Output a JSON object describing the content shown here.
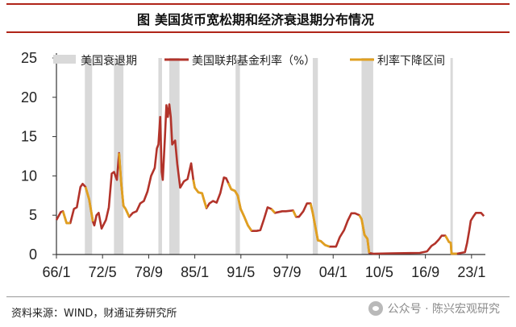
{
  "header": {
    "figure_label": "图",
    "title": "美国货币宽松期和经济衰退期分布情况"
  },
  "footer": {
    "source": "资料来源：WIND，财通证券研究所",
    "watermark": "公众号 · 陈兴宏观研究"
  },
  "colors": {
    "recession": "#d9d9d9",
    "rate_line": "#b2332a",
    "cut_line": "#e0a020",
    "title_rule": "#b02418"
  },
  "chart_data": {
    "type": "line",
    "title": "美国货币宽松期和经济衰退期分布情况",
    "xlim": [
      1966.0,
      2024.9
    ],
    "ylim": [
      0,
      25
    ],
    "yticks": [
      0,
      5,
      10,
      15,
      20,
      25
    ],
    "xticks": [
      {
        "x": 1966.0,
        "label": "66/1"
      },
      {
        "x": 1972.33,
        "label": "72/5"
      },
      {
        "x": 1978.67,
        "label": "78/9"
      },
      {
        "x": 1985.0,
        "label": "85/1"
      },
      {
        "x": 1991.33,
        "label": "91/5"
      },
      {
        "x": 1997.67,
        "label": "97/9"
      },
      {
        "x": 2004.0,
        "label": "04/1"
      },
      {
        "x": 2010.33,
        "label": "10/5"
      },
      {
        "x": 2016.67,
        "label": "16/9"
      },
      {
        "x": 2023.0,
        "label": "23/1"
      }
    ],
    "legend": [
      {
        "key": "recession",
        "label": "美国衰退期"
      },
      {
        "key": "rate",
        "label": "美国联邦基金利率（%）"
      },
      {
        "key": "cut",
        "label": "利率下降区间"
      }
    ],
    "legend_position": "top",
    "recessions": [
      [
        1969.9,
        1970.9
      ],
      [
        1973.9,
        1975.2
      ],
      [
        1980.0,
        1980.5
      ],
      [
        1981.5,
        1982.9
      ],
      [
        1990.6,
        1991.2
      ],
      [
        2001.2,
        2001.9
      ],
      [
        2007.9,
        2009.5
      ],
      [
        2020.1,
        2020.4
      ]
    ],
    "series": [
      {
        "name": "美国联邦基金利率（%）",
        "x": [
          1966.0,
          1966.6,
          1966.9,
          1967.4,
          1967.9,
          1968.4,
          1968.8,
          1969.3,
          1969.6,
          1970.0,
          1970.5,
          1971.0,
          1971.2,
          1971.5,
          1971.8,
          1972.2,
          1972.8,
          1973.2,
          1973.6,
          1973.9,
          1974.3,
          1974.6,
          1974.9,
          1975.2,
          1975.5,
          1976.0,
          1976.5,
          1977.0,
          1977.5,
          1978.0,
          1978.5,
          1979.0,
          1979.5,
          1979.8,
          1980.0,
          1980.25,
          1980.45,
          1980.6,
          1980.9,
          1981.1,
          1981.3,
          1981.5,
          1981.7,
          1981.9,
          1982.3,
          1982.6,
          1982.8,
          1983.0,
          1983.5,
          1984.0,
          1984.5,
          1984.8,
          1985.0,
          1985.5,
          1986.0,
          1986.3,
          1986.6,
          1987.0,
          1987.5,
          1988.0,
          1988.5,
          1989.0,
          1989.3,
          1989.6,
          1990.0,
          1990.5,
          1990.9,
          1991.3,
          1991.8,
          1992.3,
          1992.8,
          1993.5,
          1994.0,
          1994.5,
          1995.0,
          1995.5,
          1996.0,
          1997.0,
          1997.5,
          1998.5,
          1998.9,
          1999.3,
          1999.9,
          2000.4,
          2000.9,
          2001.2,
          2001.5,
          2001.9,
          2002.3,
          2002.9,
          2003.5,
          2004.4,
          2004.9,
          2005.5,
          2006.0,
          2006.5,
          2007.0,
          2007.6,
          2007.9,
          2008.3,
          2008.7,
          2008.95,
          2009.5,
          2012.0,
          2015.9,
          2016.9,
          2017.5,
          2018.0,
          2018.5,
          2018.9,
          2019.4,
          2019.6,
          2019.9,
          2020.15,
          2020.25,
          2021.0,
          2022.1,
          2022.4,
          2022.7,
          2022.9,
          2023.3,
          2023.6,
          2024.3,
          2024.7
        ],
        "y": [
          4.4,
          5.4,
          5.5,
          4.0,
          4.0,
          5.8,
          6.0,
          8.6,
          9.0,
          8.6,
          7.0,
          4.2,
          3.7,
          5.0,
          5.3,
          3.3,
          4.4,
          6.0,
          10.3,
          10.5,
          9.5,
          12.9,
          9.0,
          6.2,
          5.8,
          4.8,
          5.3,
          5.5,
          6.5,
          6.8,
          8.0,
          10.0,
          11.0,
          13.5,
          14.0,
          17.5,
          10.5,
          9.5,
          15.0,
          19.0,
          17.5,
          19.1,
          17.5,
          14.0,
          14.5,
          11.5,
          10.0,
          8.5,
          9.3,
          9.6,
          11.6,
          9.5,
          8.5,
          7.9,
          7.8,
          6.8,
          5.9,
          6.5,
          6.8,
          6.6,
          7.8,
          9.8,
          9.7,
          9.1,
          8.3,
          8.1,
          7.5,
          5.8,
          4.8,
          3.7,
          3.0,
          3.0,
          3.1,
          4.5,
          6.0,
          5.8,
          5.3,
          5.5,
          5.5,
          5.6,
          4.8,
          4.8,
          5.5,
          6.5,
          6.5,
          5.3,
          3.8,
          1.8,
          1.7,
          1.2,
          1.0,
          1.0,
          2.2,
          3.1,
          4.3,
          5.25,
          5.25,
          5.0,
          4.5,
          2.5,
          2.0,
          0.2,
          0.1,
          0.15,
          0.2,
          0.4,
          1.1,
          1.4,
          1.9,
          2.4,
          2.4,
          2.1,
          1.6,
          1.5,
          0.1,
          0.1,
          0.3,
          1.5,
          3.1,
          4.3,
          4.9,
          5.3,
          5.3,
          4.9
        ]
      },
      {
        "name": "利率下降区间",
        "segments": [
          {
            "x": [
              1966.9,
              1967.4,
              1967.9
            ],
            "y": [
              5.5,
              4.0,
              4.0
            ]
          },
          {
            "x": [
              1970.0,
              1970.5,
              1971.0
            ],
            "y": [
              8.6,
              7.0,
              4.2
            ]
          },
          {
            "x": [
              1974.6,
              1974.9,
              1975.2,
              1975.5,
              1976.0
            ],
            "y": [
              12.9,
              9.0,
              6.2,
              5.8,
              4.8
            ]
          },
          {
            "x": [
              1984.8,
              1985.0,
              1985.5,
              1986.0,
              1986.3,
              1986.6
            ],
            "y": [
              9.5,
              8.5,
              7.9,
              7.8,
              6.8,
              5.9
            ]
          },
          {
            "x": [
              1989.6,
              1990.0,
              1990.5,
              1990.9,
              1991.3,
              1991.8,
              1992.3,
              1992.8
            ],
            "y": [
              9.1,
              8.3,
              8.1,
              7.5,
              5.8,
              4.8,
              3.7,
              3.0
            ]
          },
          {
            "x": [
              1995.5,
              1996.0
            ],
            "y": [
              5.8,
              5.3
            ]
          },
          {
            "x": [
              1998.5,
              1998.9
            ],
            "y": [
              5.6,
              4.8
            ]
          },
          {
            "x": [
              2000.9,
              2001.2,
              2001.5,
              2001.9,
              2002.3,
              2002.9,
              2003.5
            ],
            "y": [
              6.5,
              5.3,
              3.8,
              1.8,
              1.7,
              1.2,
              1.0
            ]
          },
          {
            "x": [
              2007.6,
              2007.9,
              2008.3,
              2008.7,
              2008.95
            ],
            "y": [
              5.0,
              4.5,
              2.5,
              2.0,
              0.2
            ]
          },
          {
            "x": [
              2019.4,
              2019.6,
              2019.9,
              2020.15,
              2020.25,
              2021.0
            ],
            "y": [
              2.4,
              2.1,
              1.6,
              1.5,
              0.1,
              0.1
            ]
          }
        ]
      }
    ]
  }
}
